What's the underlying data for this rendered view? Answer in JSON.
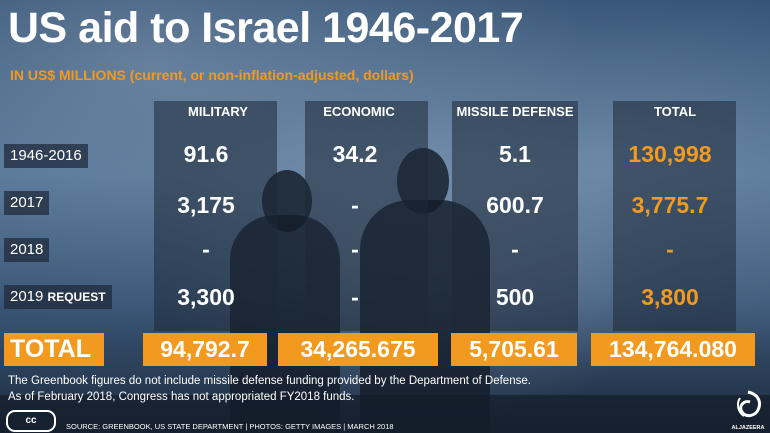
{
  "header": {
    "title": "US aid to Israel 1946-2017",
    "subtitle": "IN US$ MILLIONS (current, or non-inflation-adjusted, dollars)"
  },
  "chart_data": {
    "type": "table",
    "title": "US aid to Israel 1946-2017",
    "subtitle": "IN US$ MILLIONS (current, or non-inflation-adjusted, dollars)",
    "columns": [
      "MILITARY",
      "ECONOMIC",
      "MISSILE DEFENSE",
      "TOTAL"
    ],
    "rows": [
      {
        "label": "1946-2016",
        "label_suffix": "",
        "values": [
          "91.6",
          "34.2",
          "5.1",
          "130,998"
        ]
      },
      {
        "label": "2017",
        "label_suffix": "",
        "values": [
          "3,175",
          "-",
          "600.7",
          "3,775.7"
        ]
      },
      {
        "label": "2018",
        "label_suffix": "",
        "values": [
          "-",
          "-",
          "-",
          "-"
        ]
      },
      {
        "label": "2019",
        "label_suffix": "REQUEST",
        "values": [
          "3,300",
          "-",
          "500",
          "3,800"
        ]
      }
    ],
    "total": {
      "label": "TOTAL",
      "values": [
        "94,792.7",
        "34,265.675",
        "5,705.61",
        "134,764.080"
      ]
    },
    "colors": {
      "accent": "#f29a1f",
      "text": "#ffffff",
      "panel": "#1e2837"
    }
  },
  "notes": {
    "line1": "The Greenbook figures do not include missile defense funding provided by the Department of Defense.",
    "line2": "As of February 2018, Congress has not appropriated FY2018 funds."
  },
  "footer": {
    "license": "cc",
    "source": "SOURCE: GREENBOOK, US STATE DEPARTMENT  |  PHOTOS: GETTY IMAGES  |  MARCH 2018",
    "logo_text": "ALJAZEERA",
    "logo_icon": "al-jazeera-logo-icon"
  }
}
